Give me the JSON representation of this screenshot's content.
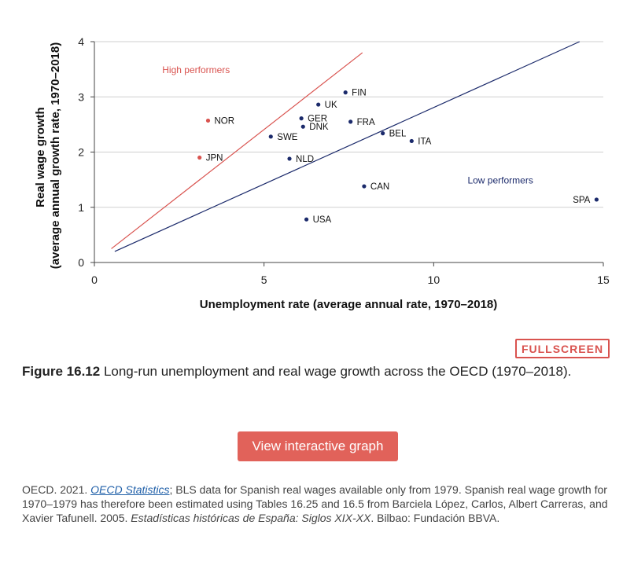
{
  "chart_data": {
    "type": "scatter",
    "xlabel": "Unemployment rate (average annual rate, 1970–2018)",
    "ylabel": [
      "Real wage growth",
      "(average annual growth rate, 1970–2018)"
    ],
    "xlim": [
      0,
      15
    ],
    "ylim": [
      0,
      4
    ],
    "xticks": [
      0,
      5,
      10,
      15
    ],
    "yticks": [
      0,
      1,
      2,
      3,
      4
    ],
    "grid": "horizontal",
    "points": [
      {
        "label": "NOR",
        "x": 3.35,
        "y": 2.57,
        "color": "#d9534f"
      },
      {
        "label": "JPN",
        "x": 3.1,
        "y": 1.9,
        "color": "#d9534f"
      },
      {
        "label": "FIN",
        "x": 7.4,
        "y": 3.08,
        "color": "#1b2a6b"
      },
      {
        "label": "UK",
        "x": 6.6,
        "y": 2.86,
        "color": "#1b2a6b"
      },
      {
        "label": "GER",
        "x": 6.1,
        "y": 2.61,
        "color": "#1b2a6b"
      },
      {
        "label": "DNK",
        "x": 6.15,
        "y": 2.46,
        "color": "#1b2a6b"
      },
      {
        "label": "FRA",
        "x": 7.55,
        "y": 2.55,
        "color": "#1b2a6b"
      },
      {
        "label": "SWE",
        "x": 5.2,
        "y": 2.28,
        "color": "#1b2a6b"
      },
      {
        "label": "BEL",
        "x": 8.5,
        "y": 2.34,
        "color": "#1b2a6b"
      },
      {
        "label": "ITA",
        "x": 9.35,
        "y": 2.2,
        "color": "#1b2a6b"
      },
      {
        "label": "NLD",
        "x": 5.75,
        "y": 1.88,
        "color": "#1b2a6b"
      },
      {
        "label": "CAN",
        "x": 7.95,
        "y": 1.38,
        "color": "#1b2a6b"
      },
      {
        "label": "USA",
        "x": 6.25,
        "y": 0.78,
        "color": "#1b2a6b"
      },
      {
        "label": "SPA",
        "x": 14.8,
        "y": 1.14,
        "color": "#1b2a6b"
      }
    ],
    "lines": [
      {
        "color": "#d9534f",
        "x": [
          0.5,
          7.9
        ],
        "y": [
          0.25,
          3.8
        ]
      },
      {
        "color": "#1b2a6b",
        "x": [
          0.6,
          14.3
        ],
        "y": [
          0.2,
          4.0
        ]
      }
    ],
    "annotations": [
      {
        "text": "High performers",
        "color": "#d9534f"
      },
      {
        "text": "Low performers",
        "color": "#1b2a6b"
      }
    ]
  },
  "fullscreen_label": "FULLSCREEN",
  "caption": {
    "number": "Figure 16.12",
    "text": " Long-run unemployment and real wage growth across the OECD (1970–2018)."
  },
  "interactive_button": "View interactive graph",
  "source": {
    "prefix": "OECD. 2021. ",
    "link": "OECD Statistics",
    "middle": "; BLS data for Spanish real wages available only from 1979. Spanish real wage growth for 1970–1979 has therefore been estimated using Tables 16.25 and 16.5 from Barciela López, Carlos, Albert Carreras, and Xavier Tafunell. 2005. ",
    "title": "Estadísticas históricas de España: Siglos XIX-XX",
    "suffix": ". Bilbao: Fundación BBVA."
  }
}
